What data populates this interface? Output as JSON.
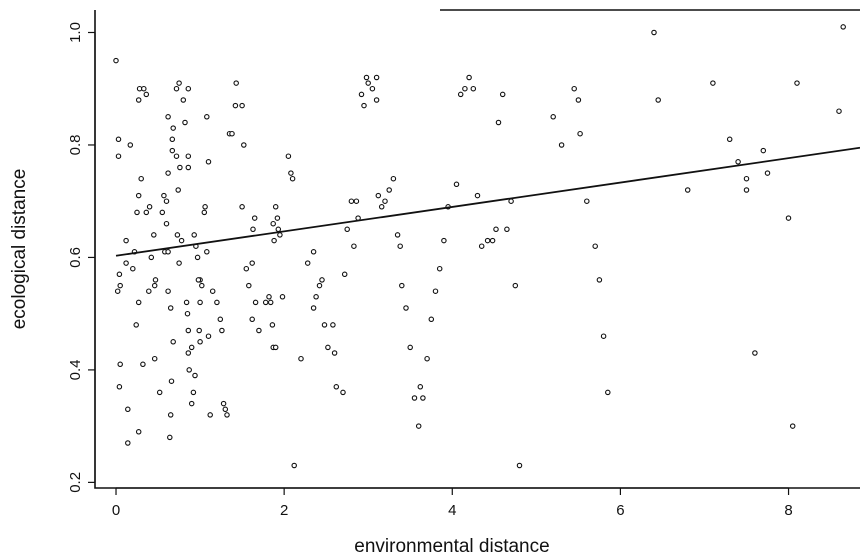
{
  "chart_data": {
    "type": "scatter",
    "xlabel": "environmental distance",
    "ylabel": "ecological distance",
    "xlim": [
      -0.25,
      8.85
    ],
    "ylim": [
      0.19,
      1.04
    ],
    "xticks": [
      0,
      2,
      4,
      6,
      8
    ],
    "xtick_labels": [
      "0",
      "2",
      "4",
      "6",
      "8"
    ],
    "yticks": [
      0.2,
      0.4,
      0.6,
      0.8,
      1.0
    ],
    "ytick_labels": [
      "0.2",
      "0.4",
      "0.6",
      "0.8",
      "1.0"
    ],
    "grid": false,
    "regression_line": {
      "x": [
        0,
        8.85
      ],
      "y": [
        0.603,
        0.795
      ]
    },
    "points": [
      [
        0.0,
        0.95
      ],
      [
        0.03,
        0.81
      ],
      [
        0.03,
        0.78
      ],
      [
        0.04,
        0.57
      ],
      [
        0.05,
        0.55
      ],
      [
        0.02,
        0.54
      ],
      [
        0.05,
        0.41
      ],
      [
        0.04,
        0.37
      ],
      [
        0.14,
        0.27
      ],
      [
        0.14,
        0.33
      ],
      [
        0.12,
        0.59
      ],
      [
        0.12,
        0.63
      ],
      [
        0.17,
        0.8
      ],
      [
        0.2,
        0.58
      ],
      [
        0.22,
        0.61
      ],
      [
        0.24,
        0.48
      ],
      [
        0.27,
        0.52
      ],
      [
        0.25,
        0.68
      ],
      [
        0.27,
        0.71
      ],
      [
        0.3,
        0.74
      ],
      [
        0.27,
        0.29
      ],
      [
        0.32,
        0.41
      ],
      [
        0.27,
        0.88
      ],
      [
        0.28,
        0.9
      ],
      [
        0.33,
        0.9
      ],
      [
        0.36,
        0.89
      ],
      [
        0.36,
        0.68
      ],
      [
        0.4,
        0.69
      ],
      [
        0.39,
        0.54
      ],
      [
        0.42,
        0.6
      ],
      [
        0.45,
        0.64
      ],
      [
        0.46,
        0.55
      ],
      [
        0.47,
        0.56
      ],
      [
        0.46,
        0.42
      ],
      [
        0.52,
        0.36
      ],
      [
        0.55,
        0.68
      ],
      [
        0.58,
        0.61
      ],
      [
        0.57,
        0.71
      ],
      [
        0.6,
        0.66
      ],
      [
        0.6,
        0.7
      ],
      [
        0.62,
        0.85
      ],
      [
        0.62,
        0.75
      ],
      [
        0.62,
        0.61
      ],
      [
        0.62,
        0.54
      ],
      [
        0.65,
        0.51
      ],
      [
        0.68,
        0.45
      ],
      [
        0.66,
        0.38
      ],
      [
        0.65,
        0.32
      ],
      [
        0.64,
        0.28
      ],
      [
        0.67,
        0.81
      ],
      [
        0.68,
        0.83
      ],
      [
        0.67,
        0.79
      ],
      [
        0.72,
        0.78
      ],
      [
        0.72,
        0.9
      ],
      [
        0.75,
        0.91
      ],
      [
        0.76,
        0.76
      ],
      [
        0.73,
        0.64
      ],
      [
        0.78,
        0.63
      ],
      [
        0.75,
        0.59
      ],
      [
        0.74,
        0.72
      ],
      [
        0.8,
        0.88
      ],
      [
        0.86,
        0.9
      ],
      [
        0.86,
        0.78
      ],
      [
        0.86,
        0.76
      ],
      [
        0.82,
        0.84
      ],
      [
        0.84,
        0.52
      ],
      [
        0.85,
        0.5
      ],
      [
        0.86,
        0.47
      ],
      [
        0.86,
        0.43
      ],
      [
        0.87,
        0.4
      ],
      [
        0.9,
        0.44
      ],
      [
        0.9,
        0.34
      ],
      [
        0.92,
        0.36
      ],
      [
        0.94,
        0.39
      ],
      [
        0.93,
        0.64
      ],
      [
        0.95,
        0.62
      ],
      [
        0.97,
        0.6
      ],
      [
        1.0,
        0.56
      ],
      [
        0.98,
        0.56
      ],
      [
        1.0,
        0.52
      ],
      [
        0.99,
        0.47
      ],
      [
        1.0,
        0.45
      ],
      [
        1.02,
        0.55
      ],
      [
        1.05,
        0.68
      ],
      [
        1.06,
        0.69
      ],
      [
        1.08,
        0.61
      ],
      [
        1.1,
        0.46
      ],
      [
        1.12,
        0.32
      ],
      [
        1.08,
        0.85
      ],
      [
        1.1,
        0.77
      ],
      [
        1.15,
        0.54
      ],
      [
        1.2,
        0.52
      ],
      [
        1.24,
        0.49
      ],
      [
        1.26,
        0.47
      ],
      [
        1.28,
        0.34
      ],
      [
        1.32,
        0.32
      ],
      [
        1.3,
        0.33
      ],
      [
        1.35,
        0.82
      ],
      [
        1.38,
        0.82
      ],
      [
        1.42,
        0.87
      ],
      [
        1.43,
        0.91
      ],
      [
        1.5,
        0.69
      ],
      [
        1.5,
        0.87
      ],
      [
        1.52,
        0.8
      ],
      [
        1.55,
        0.58
      ],
      [
        1.58,
        0.55
      ],
      [
        1.62,
        0.59
      ],
      [
        1.63,
        0.65
      ],
      [
        1.65,
        0.67
      ],
      [
        1.62,
        0.49
      ],
      [
        1.66,
        0.52
      ],
      [
        1.7,
        0.47
      ],
      [
        1.78,
        0.52
      ],
      [
        1.82,
        0.53
      ],
      [
        1.84,
        0.52
      ],
      [
        1.86,
        0.48
      ],
      [
        1.87,
        0.44
      ],
      [
        1.9,
        0.44
      ],
      [
        1.87,
        0.66
      ],
      [
        1.88,
        0.63
      ],
      [
        1.9,
        0.69
      ],
      [
        1.92,
        0.67
      ],
      [
        1.93,
        0.65
      ],
      [
        1.95,
        0.64
      ],
      [
        1.98,
        0.53
      ],
      [
        2.05,
        0.78
      ],
      [
        2.08,
        0.75
      ],
      [
        2.1,
        0.74
      ],
      [
        2.12,
        0.23
      ],
      [
        2.2,
        0.42
      ],
      [
        2.28,
        0.59
      ],
      [
        2.35,
        0.61
      ],
      [
        2.35,
        0.51
      ],
      [
        2.38,
        0.53
      ],
      [
        2.42,
        0.55
      ],
      [
        2.48,
        0.48
      ],
      [
        2.45,
        0.56
      ],
      [
        2.52,
        0.44
      ],
      [
        2.58,
        0.48
      ],
      [
        2.6,
        0.43
      ],
      [
        2.62,
        0.37
      ],
      [
        2.7,
        0.36
      ],
      [
        2.72,
        0.57
      ],
      [
        2.75,
        0.65
      ],
      [
        2.8,
        0.7
      ],
      [
        2.83,
        0.62
      ],
      [
        2.86,
        0.7
      ],
      [
        2.88,
        0.67
      ],
      [
        2.92,
        0.89
      ],
      [
        2.95,
        0.87
      ],
      [
        2.98,
        0.92
      ],
      [
        3.0,
        0.91
      ],
      [
        3.05,
        0.9
      ],
      [
        3.1,
        0.92
      ],
      [
        3.1,
        0.88
      ],
      [
        3.12,
        0.71
      ],
      [
        3.16,
        0.69
      ],
      [
        3.2,
        0.7
      ],
      [
        3.25,
        0.72
      ],
      [
        3.3,
        0.74
      ],
      [
        3.35,
        0.64
      ],
      [
        3.38,
        0.62
      ],
      [
        3.4,
        0.55
      ],
      [
        3.45,
        0.51
      ],
      [
        3.5,
        0.44
      ],
      [
        3.55,
        0.35
      ],
      [
        3.6,
        0.3
      ],
      [
        3.62,
        0.37
      ],
      [
        3.65,
        0.35
      ],
      [
        3.7,
        0.42
      ],
      [
        3.75,
        0.49
      ],
      [
        3.8,
        0.54
      ],
      [
        3.85,
        0.58
      ],
      [
        3.9,
        0.63
      ],
      [
        3.95,
        0.69
      ],
      [
        4.05,
        0.73
      ],
      [
        4.1,
        0.89
      ],
      [
        4.15,
        0.9
      ],
      [
        4.2,
        0.92
      ],
      [
        4.25,
        0.9
      ],
      [
        4.3,
        0.71
      ],
      [
        4.35,
        0.62
      ],
      [
        4.42,
        0.63
      ],
      [
        4.48,
        0.63
      ],
      [
        4.52,
        0.65
      ],
      [
        4.55,
        0.84
      ],
      [
        4.6,
        0.89
      ],
      [
        4.65,
        0.65
      ],
      [
        4.7,
        0.7
      ],
      [
        4.75,
        0.55
      ],
      [
        4.8,
        0.23
      ],
      [
        5.2,
        0.85
      ],
      [
        5.3,
        0.8
      ],
      [
        5.45,
        0.9
      ],
      [
        5.5,
        0.88
      ],
      [
        5.52,
        0.82
      ],
      [
        5.6,
        0.7
      ],
      [
        5.7,
        0.62
      ],
      [
        5.75,
        0.56
      ],
      [
        5.8,
        0.46
      ],
      [
        5.85,
        0.36
      ],
      [
        6.4,
        1.0
      ],
      [
        6.45,
        0.88
      ],
      [
        6.8,
        0.72
      ],
      [
        7.1,
        0.91
      ],
      [
        7.3,
        0.81
      ],
      [
        7.4,
        0.77
      ],
      [
        7.5,
        0.74
      ],
      [
        7.5,
        0.72
      ],
      [
        7.6,
        0.43
      ],
      [
        7.7,
        0.79
      ],
      [
        7.75,
        0.75
      ],
      [
        8.0,
        0.67
      ],
      [
        8.05,
        0.3
      ],
      [
        8.1,
        0.91
      ],
      [
        8.6,
        0.86
      ],
      [
        8.65,
        1.01
      ]
    ]
  }
}
